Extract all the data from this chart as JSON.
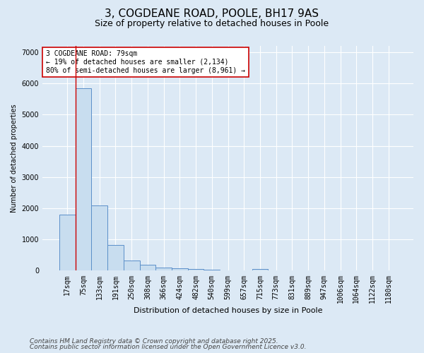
{
  "title1": "3, COGDEANE ROAD, POOLE, BH17 9AS",
  "title2": "Size of property relative to detached houses in Poole",
  "xlabel": "Distribution of detached houses by size in Poole",
  "ylabel": "Number of detached properties",
  "bar_labels": [
    "17sqm",
    "75sqm",
    "133sqm",
    "191sqm",
    "250sqm",
    "308sqm",
    "366sqm",
    "424sqm",
    "482sqm",
    "540sqm",
    "599sqm",
    "657sqm",
    "715sqm",
    "773sqm",
    "831sqm",
    "889sqm",
    "947sqm",
    "1006sqm",
    "1064sqm",
    "1122sqm",
    "1180sqm"
  ],
  "bar_heights": [
    1800,
    5850,
    2100,
    820,
    330,
    190,
    110,
    75,
    55,
    30,
    20,
    15,
    60,
    5,
    4,
    3,
    2,
    2,
    1,
    1,
    1
  ],
  "bar_color": "#c8ddef",
  "bar_edge_color": "#5b8fc9",
  "vline_x": 0.5,
  "vline_color": "#cc0000",
  "annotation_text": "3 COGDEANE ROAD: 79sqm\n← 19% of detached houses are smaller (2,134)\n80% of semi-detached houses are larger (8,961) →",
  "ylim": [
    0,
    7200
  ],
  "yticks": [
    0,
    1000,
    2000,
    3000,
    4000,
    5000,
    6000,
    7000
  ],
  "bg_color": "#dce9f5",
  "plot_bg_color": "#dce9f5",
  "footer1": "Contains HM Land Registry data © Crown copyright and database right 2025.",
  "footer2": "Contains public sector information licensed under the Open Government Licence v3.0.",
  "title1_fontsize": 11,
  "title2_fontsize": 9,
  "annotation_fontsize": 7,
  "axis_fontsize": 7,
  "footer_fontsize": 6.5,
  "ylabel_fontsize": 7,
  "xlabel_fontsize": 8
}
